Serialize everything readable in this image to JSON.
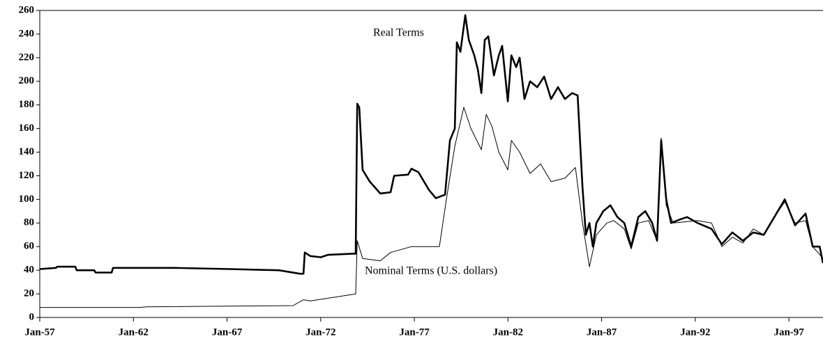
{
  "chart_data": {
    "type": "line",
    "xlim": [
      1957,
      1998.82
    ],
    "xticks": [
      {
        "value": 1957,
        "label": "Jan-57"
      },
      {
        "value": 1962,
        "label": "Jan-62"
      },
      {
        "value": 1967,
        "label": "Jan-67"
      },
      {
        "value": 1972,
        "label": "Jan-72"
      },
      {
        "value": 1977,
        "label": "Jan-77"
      },
      {
        "value": 1982,
        "label": "Jan-82"
      },
      {
        "value": 1987,
        "label": "Jan-87"
      },
      {
        "value": 1992,
        "label": "Jan-92"
      },
      {
        "value": 1997,
        "label": "Jan-97"
      }
    ],
    "ylim": [
      0,
      260
    ],
    "yticks": [
      0,
      20,
      40,
      60,
      80,
      100,
      120,
      140,
      160,
      180,
      200,
      220,
      240,
      260
    ],
    "grid": false,
    "series": [
      {
        "name": "Real Terms",
        "color": "#000000",
        "width": 2.6,
        "x": [
          1957.0,
          1957.86,
          1957.93,
          1958.9,
          1958.97,
          1959.91,
          1959.98,
          1960.84,
          1960.91,
          1964.19,
          1967.17,
          1969.77,
          1970.89,
          1971.08,
          1971.15,
          1971.45,
          1972.01,
          1972.38,
          1973.69,
          1973.87,
          1973.95,
          1974.06,
          1974.24,
          1974.62,
          1975.18,
          1975.73,
          1975.92,
          1976.67,
          1976.85,
          1977.22,
          1977.78,
          1978.15,
          1978.64,
          1978.9,
          1979.16,
          1979.27,
          1979.46,
          1979.72,
          1979.91,
          1980.2,
          1980.39,
          1980.58,
          1980.76,
          1980.95,
          1981.25,
          1981.51,
          1981.69,
          1981.99,
          1982.18,
          1982.44,
          1982.62,
          1982.88,
          1983.18,
          1983.56,
          1983.93,
          1984.3,
          1984.67,
          1985.04,
          1985.42,
          1985.72,
          1985.98,
          1986.16,
          1986.35,
          1986.53,
          1986.72,
          1987.09,
          1987.47,
          1987.84,
          1988.21,
          1988.58,
          1988.96,
          1989.33,
          1989.7,
          1989.96,
          1990.18,
          1990.45,
          1990.71,
          1991.19,
          1991.56,
          1992.12,
          1992.87,
          1993.42,
          1993.98,
          1994.54,
          1995.1,
          1995.66,
          1996.22,
          1996.78,
          1997.33,
          1997.89,
          1998.27,
          1998.64,
          1998.82
        ],
        "values": [
          41,
          42,
          43,
          43,
          40,
          40,
          38,
          38,
          42,
          42,
          41,
          40,
          37,
          37,
          55,
          52,
          51,
          53,
          54,
          54,
          181,
          178,
          125,
          115,
          105,
          106,
          120,
          121,
          126,
          123,
          108,
          101,
          104,
          150,
          160,
          233,
          225,
          256,
          235,
          222,
          210,
          190,
          235,
          238,
          205,
          222,
          230,
          183,
          222,
          212,
          220,
          185,
          200,
          195,
          204,
          185,
          195,
          185,
          190,
          188,
          110,
          70,
          80,
          60,
          80,
          90,
          95,
          85,
          80,
          60,
          85,
          90,
          80,
          65,
          150,
          100,
          80,
          83,
          85,
          80,
          75,
          62,
          72,
          65,
          72,
          70,
          85,
          100,
          78,
          88,
          60,
          60,
          46
        ]
      },
      {
        "name": "Nominal Terms (U.S. dollars)",
        "color": "#000000",
        "width": 1,
        "x": [
          1957.0,
          1962.33,
          1962.7,
          1970.52,
          1971.08,
          1971.45,
          1973.5,
          1973.87,
          1973.95,
          1974.24,
          1975.18,
          1975.73,
          1976.85,
          1978.34,
          1978.71,
          1979.16,
          1979.64,
          1980.02,
          1980.58,
          1980.84,
          1981.14,
          1981.51,
          1981.99,
          1982.18,
          1982.62,
          1983.18,
          1983.74,
          1984.3,
          1985.04,
          1985.6,
          1985.98,
          1986.35,
          1986.72,
          1987.28,
          1987.65,
          1988.21,
          1988.58,
          1988.96,
          1989.51,
          1989.96,
          1990.18,
          1990.45,
          1990.82,
          1992.12,
          1992.87,
          1993.42,
          1993.98,
          1994.54,
          1995.1,
          1995.66,
          1996.22,
          1996.78,
          1997.33,
          1997.89,
          1998.27,
          1998.82
        ],
        "values": [
          8.5,
          8.5,
          9,
          10,
          15,
          14,
          19,
          20,
          65,
          50,
          48,
          55,
          60,
          60,
          100,
          145,
          178,
          160,
          142,
          172,
          162,
          140,
          125,
          150,
          140,
          122,
          130,
          115,
          118,
          127,
          80,
          43,
          70,
          80,
          82,
          75,
          58,
          80,
          82,
          65,
          152,
          95,
          80,
          82,
          80,
          60,
          68,
          63,
          75,
          70,
          85,
          98,
          80,
          82,
          60,
          50
        ]
      }
    ]
  }
}
